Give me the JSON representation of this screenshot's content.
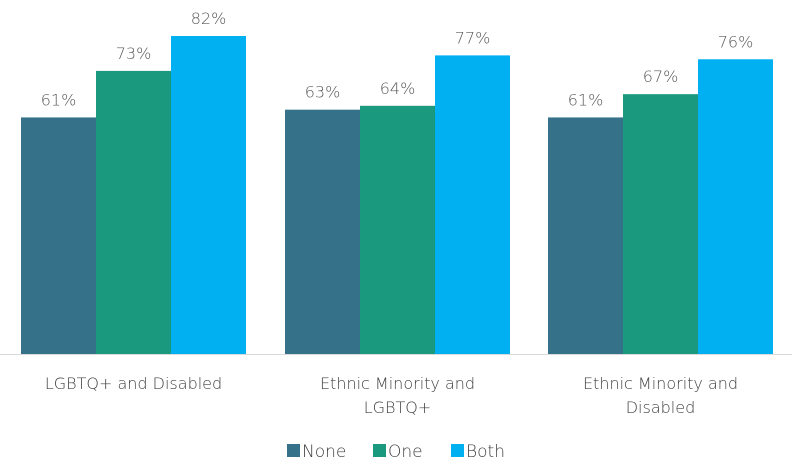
{
  "chart_data": {
    "type": "bar",
    "categories": [
      [
        "LGBTQ+ and Disabled"
      ],
      [
        "Ethnic Minority and",
        "LGBTQ+"
      ],
      [
        "Ethnic Minority and",
        "Disabled"
      ]
    ],
    "series": [
      {
        "name": "None",
        "color": "#35728A",
        "values": [
          61,
          63,
          61
        ],
        "labels": [
          "61%",
          "63%",
          "61%"
        ]
      },
      {
        "name": "One",
        "color": "#1B997E",
        "values": [
          73,
          64,
          67
        ],
        "labels": [
          "73%",
          "64%",
          "67%"
        ]
      },
      {
        "name": "Both",
        "color": "#00B0F0",
        "values": [
          82,
          77,
          76
        ],
        "labels": [
          "82%",
          "77%",
          "76%"
        ]
      }
    ],
    "ylim": [
      0,
      90
    ],
    "grid": false,
    "legend": "bottom-center",
    "axis_color": "#D9D9D9"
  }
}
